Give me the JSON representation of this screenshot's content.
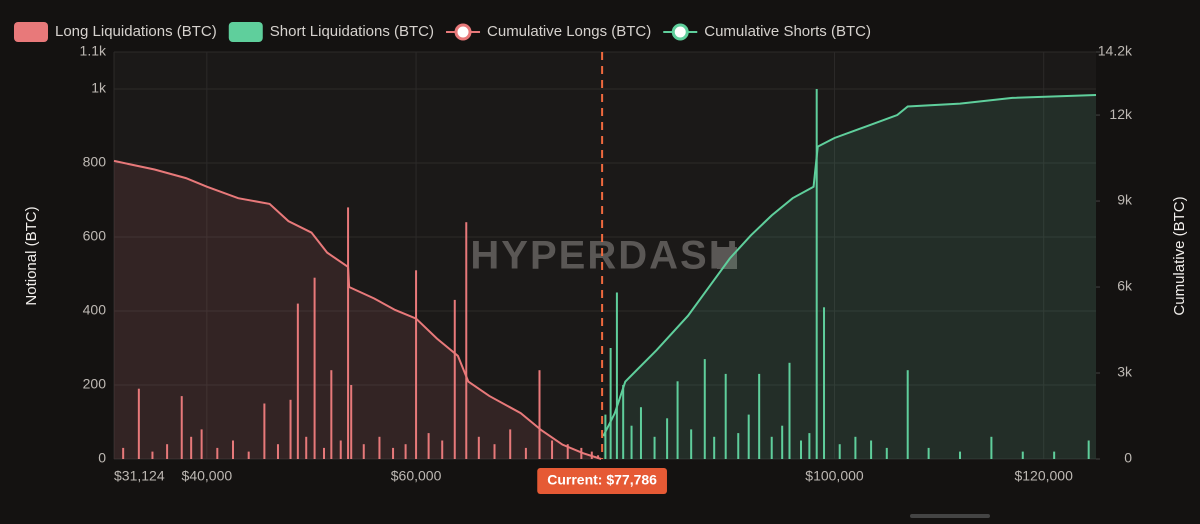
{
  "chart_data": {
    "type": "bar",
    "watermark": "HYPERDASH",
    "y_label": "Notional (BTC)",
    "y2_label": "Cumulative (BTC)",
    "xlim": [
      31124,
      125000
    ],
    "xticks": [
      {
        "value": 31124,
        "label": "$31,124"
      },
      {
        "value": 40000,
        "label": "$40,000"
      },
      {
        "value": 60000,
        "label": "$60,000"
      },
      {
        "value": 100000,
        "label": "$100,000"
      },
      {
        "value": 120000,
        "label": "$120,000"
      }
    ],
    "ylim": [
      0,
      1100
    ],
    "yticks": [
      0,
      200,
      400,
      600,
      800,
      {
        "value": 1000,
        "label": "1k"
      },
      {
        "value": 1100,
        "label": "1.1k"
      }
    ],
    "y2lim": [
      0,
      14200
    ],
    "y2ticks": [
      0,
      {
        "value": 3000,
        "label": "3k"
      },
      {
        "value": 6000,
        "label": "6k"
      },
      {
        "value": 9000,
        "label": "9k"
      },
      {
        "value": 12000,
        "label": "12k"
      },
      {
        "value": 14200,
        "label": "14.2k"
      }
    ],
    "grid": true,
    "current": {
      "value": 77786,
      "label": "Current: $77,786"
    },
    "series": [
      {
        "name": "Long Liquidations (BTC)",
        "type": "bar",
        "color": "#e8797a",
        "x": [
          32000,
          33500,
          34800,
          36200,
          37600,
          38500,
          39500,
          41000,
          42500,
          44000,
          45500,
          46800,
          48000,
          48700,
          49500,
          50300,
          51200,
          51900,
          52800,
          53500,
          53800,
          55000,
          56500,
          57800,
          59000,
          60000,
          61200,
          62500,
          63700,
          64800,
          66000,
          67500,
          69000,
          70500,
          71800,
          73000,
          74500,
          75800,
          76800,
          77400
        ],
        "values": [
          30,
          190,
          20,
          40,
          170,
          60,
          80,
          30,
          50,
          20,
          150,
          40,
          160,
          420,
          60,
          490,
          30,
          240,
          50,
          680,
          200,
          40,
          60,
          30,
          40,
          510,
          70,
          50,
          430,
          640,
          60,
          40,
          80,
          30,
          240,
          50,
          40,
          30,
          20,
          10
        ]
      },
      {
        "name": "Short Liquidations (BTC)",
        "type": "bar",
        "color": "#5fcf9c",
        "x": [
          78100,
          78600,
          79200,
          79800,
          80600,
          81500,
          82800,
          84000,
          85000,
          86300,
          87600,
          88500,
          89600,
          90800,
          91800,
          92800,
          94000,
          95000,
          95700,
          96800,
          97600,
          98300,
          99000,
          100500,
          102000,
          103500,
          105000,
          107000,
          109000,
          112000,
          115000,
          118000,
          121000,
          124300
        ],
        "values": [
          120,
          300,
          450,
          200,
          90,
          140,
          60,
          110,
          210,
          80,
          270,
          60,
          230,
          70,
          120,
          230,
          60,
          90,
          260,
          50,
          70,
          1000,
          410,
          40,
          60,
          50,
          30,
          240,
          30,
          20,
          60,
          20,
          20,
          50
        ]
      },
      {
        "name": "Cumulative Longs (BTC)",
        "type": "line",
        "axis": "y2",
        "color": "#e8797a",
        "x": [
          31124,
          35000,
          38000,
          40000,
          43000,
          46000,
          47800,
          50000,
          51500,
          53500,
          53600,
          56000,
          58000,
          60000,
          62000,
          64000,
          65000,
          67000,
          70000,
          72000,
          74000,
          76000,
          77700
        ],
        "values": [
          10400,
          10100,
          9800,
          9500,
          9100,
          8900,
          8300,
          7900,
          7200,
          6700,
          6000,
          5600,
          5200,
          4900,
          4200,
          3600,
          2700,
          2200,
          1600,
          1000,
          500,
          200,
          0
        ]
      },
      {
        "name": "Cumulative Shorts (BTC)",
        "type": "line",
        "axis": "y2",
        "color": "#5fcf9c",
        "x": [
          77900,
          79000,
          80000,
          83000,
          86000,
          88000,
          90000,
          92000,
          94000,
          96000,
          98000,
          98400,
          100000,
          103000,
          106000,
          107000,
          112000,
          117000,
          125000
        ],
        "values": [
          800,
          1600,
          2700,
          3800,
          5000,
          6000,
          7000,
          7800,
          8500,
          9100,
          9500,
          10900,
          11200,
          11600,
          12000,
          12300,
          12400,
          12600,
          12700
        ]
      }
    ]
  }
}
